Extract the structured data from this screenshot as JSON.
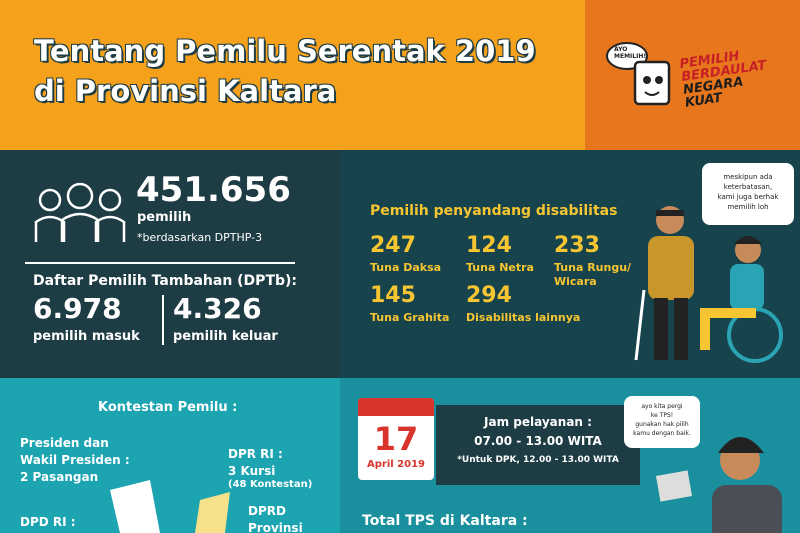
{
  "header": {
    "title_lines": [
      "Tentang Pemilu Serentak 2019",
      "di Provinsi Kaltara"
    ],
    "logo": {
      "bubble": [
        "AYO",
        "MEMILIH!"
      ],
      "slogan_lines": [
        "PEMILIH",
        "BERDAULAT",
        "NEGARA",
        "KUAT"
      ]
    }
  },
  "voters": {
    "number": "451.656",
    "label": "pemilih",
    "note": "*berdasarkan DPTHP-3"
  },
  "dptb": {
    "title": "Daftar Pemilih Tambahan (DPTb):",
    "in": {
      "number": "6.978",
      "label": "pemilih masuk"
    },
    "out": {
      "number": "4.326",
      "label": "pemilih keluar"
    }
  },
  "disability": {
    "title": "Pemilih penyandang disabilitas",
    "items": [
      {
        "number": "247",
        "label_lines": [
          "Tuna Daksa"
        ]
      },
      {
        "number": "124",
        "label_lines": [
          "Tuna Netra"
        ]
      },
      {
        "number": "233",
        "label_lines": [
          "Tuna Rungu/",
          "Wicara"
        ]
      },
      {
        "number": "145",
        "label_lines": [
          "Tuna Grahita"
        ]
      },
      {
        "number": "294",
        "label_lines": [
          "Disabilitas lainnya"
        ]
      }
    ],
    "speech_lines": [
      "meskipun ada",
      "keterbatasan,",
      "kami juga berhak",
      "memilih loh"
    ]
  },
  "contestants": {
    "title": "Kontestan Pemilu :",
    "president_lines": [
      "Presiden dan",
      "Wakil Presiden :",
      "2 Pasangan"
    ],
    "dpr_lines": [
      "DPR RI :",
      "3 Kursi"
    ],
    "dpr_note": "(48 Kontestan)",
    "dpd_lines": [
      "DPD RI :"
    ],
    "dprd_lines": [
      "DPRD",
      "Provinsi"
    ]
  },
  "schedule": {
    "day": "17",
    "month": "April 2019",
    "hours_title": "Jam pelayanan :",
    "hours": "07.00 - 13.00 WITA",
    "dpk_note": "*Untuk DPK, 12.00 - 13.00 WITA",
    "speech_lines": [
      "ayo kita pergi",
      "ke TPS!",
      "gunakan hak pilih",
      "kamu dengan baik."
    ],
    "tps_title": "Total TPS di Kaltara :"
  }
}
